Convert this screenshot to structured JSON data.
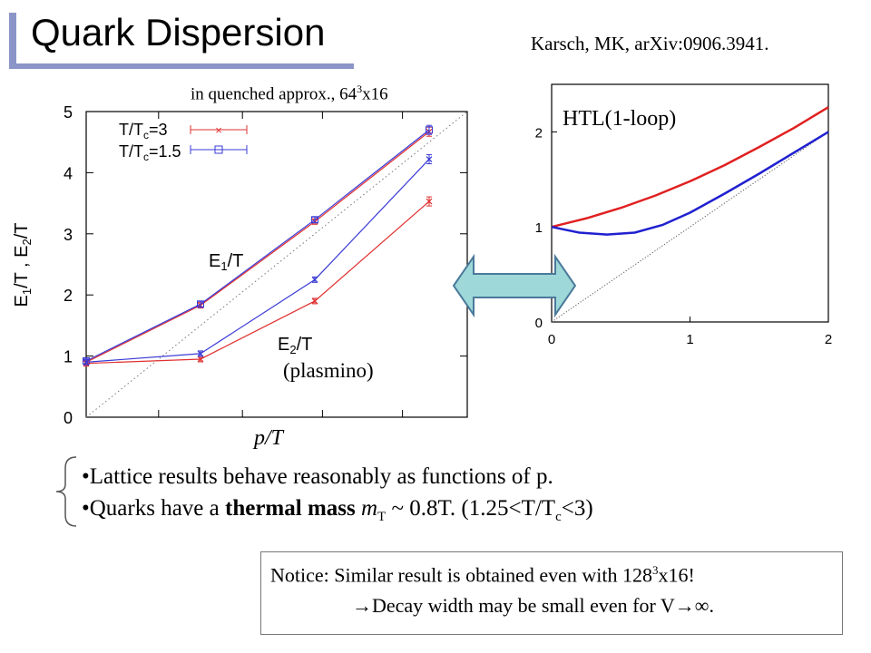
{
  "slide": {
    "title": "Quark Dispersion",
    "citation": "Karsch, MK, arXiv:0906.3941.",
    "caption_prefix": "in quenched approx., 64",
    "caption_exp": "3",
    "caption_suffix": "x16",
    "pt_label": "p/T",
    "bullet1": "•Lattice results behave reasonably as functions of p.",
    "bullet2_a": "•Quarks have a ",
    "bullet2_bold": "thermal mass",
    "bullet2_m": " m",
    "bullet2_msub": "T",
    "bullet2_b": " ~ 0.8T. (1.25<T/T",
    "bullet2_csub": "c",
    "bullet2_c": "<3)",
    "notice_line1_a": "Notice: Similar result is obtained even with 128",
    "notice_line1_exp": "3",
    "notice_line1_b": "x16!",
    "notice_arrow": "→",
    "notice_line2_a": "Decay width may be small even for V",
    "notice_line2_b": "∞."
  },
  "chart_data": [
    {
      "type": "line",
      "ylabel": "E1/T , E2/T",
      "ylim": [
        0,
        5
      ],
      "yticks": [
        "0",
        "1",
        "2",
        "3",
        "4",
        "5"
      ],
      "xlim": [
        0,
        5
      ],
      "legend": [
        "T/Tc=3",
        "T/Tc=1.5"
      ],
      "legend_position": "top-left",
      "annotations": [
        "E1/T",
        "E2/T",
        "(plasmino)"
      ],
      "series": [
        {
          "name": "T/Tc=3",
          "branch": "E1",
          "color": "#e03030",
          "x": [
            0,
            1.5,
            3.0,
            4.5
          ],
          "y": [
            0.9,
            1.83,
            3.2,
            4.67
          ]
        },
        {
          "name": "T/Tc=1.5",
          "branch": "E1",
          "color": "#3b3bd6",
          "x": [
            0,
            1.5,
            3.0,
            4.5
          ],
          "y": [
            0.92,
            1.85,
            3.23,
            4.7
          ]
        },
        {
          "name": "T/Tc=3",
          "branch": "E2",
          "color": "#e03030",
          "x": [
            0,
            1.5,
            3.0,
            4.5
          ],
          "y": [
            0.88,
            0.95,
            1.9,
            3.53
          ]
        },
        {
          "name": "T/Tc=1.5",
          "branch": "E2",
          "color": "#3b3bd6",
          "x": [
            0,
            1.5,
            3.0,
            4.5
          ],
          "y": [
            0.9,
            1.04,
            2.25,
            4.22
          ]
        }
      ],
      "reference_line": {
        "x": [
          0,
          5
        ],
        "y": [
          0,
          5
        ],
        "style": "dotted"
      }
    },
    {
      "type": "line",
      "title": "HTL(1-loop)",
      "xlim": [
        0,
        2
      ],
      "ylim": [
        0,
        2.5
      ],
      "xticks": [
        "0",
        "1",
        "2"
      ],
      "yticks": [
        "0",
        "1",
        "2"
      ],
      "series": [
        {
          "branch": "E1",
          "color": "#e02020",
          "x": [
            0,
            0.25,
            0.5,
            0.75,
            1.0,
            1.25,
            1.5,
            1.75,
            2.0
          ],
          "y": [
            1.0,
            1.09,
            1.2,
            1.33,
            1.48,
            1.65,
            1.84,
            2.04,
            2.26
          ]
        },
        {
          "branch": "E2",
          "color": "#2020d0",
          "x": [
            0,
            0.2,
            0.4,
            0.6,
            0.8,
            1.0,
            1.25,
            1.5,
            1.75,
            2.0
          ],
          "y": [
            1.0,
            0.94,
            0.92,
            0.94,
            1.02,
            1.15,
            1.35,
            1.56,
            1.78,
            2.0
          ]
        }
      ],
      "reference_line": {
        "x": [
          0,
          2
        ],
        "y": [
          0,
          2
        ],
        "style": "dotted"
      }
    }
  ],
  "colors": {
    "accent": "#8c95c8",
    "arrow_fill": "#9ed8d8",
    "arrow_stroke": "#4a7a9a"
  }
}
